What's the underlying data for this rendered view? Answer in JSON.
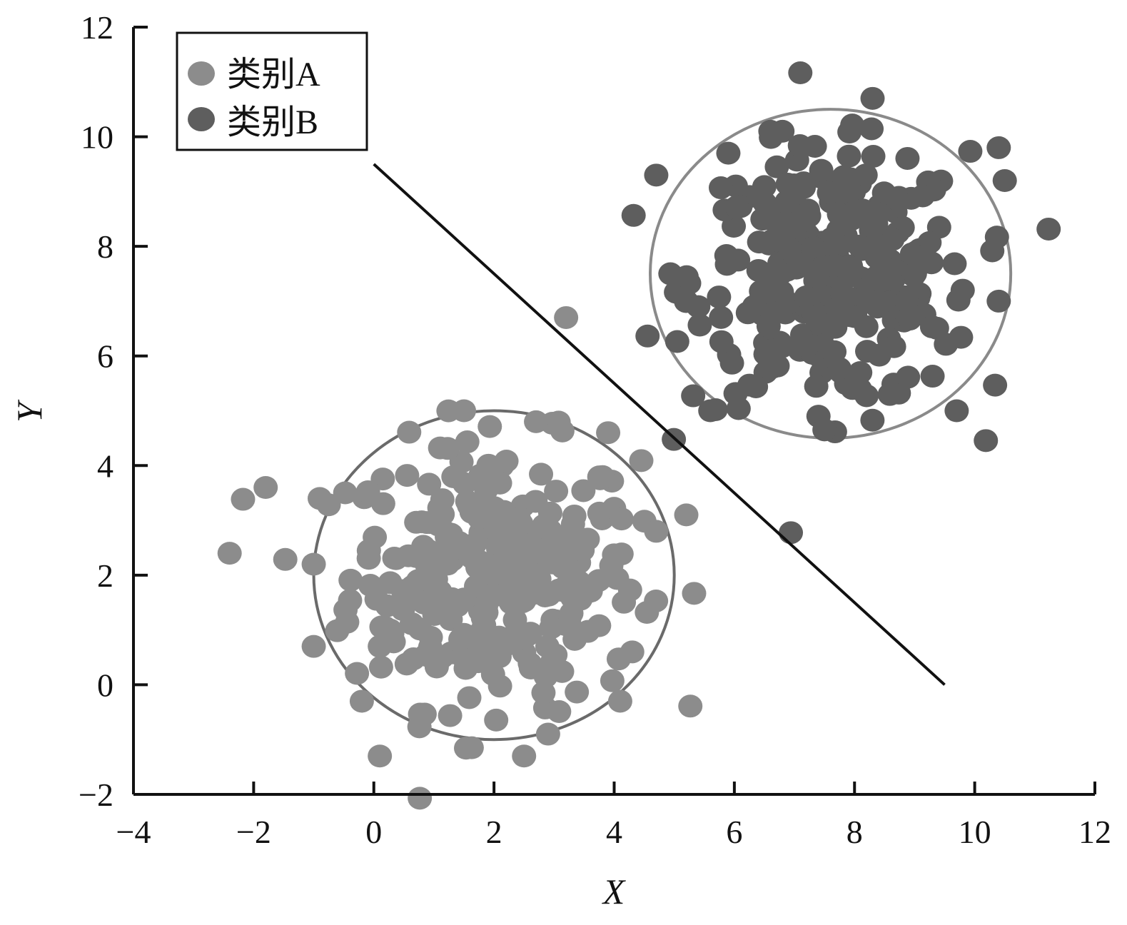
{
  "chart_data": {
    "type": "scatter",
    "xlabel": "X",
    "ylabel": "Y",
    "xlim": [
      -4,
      12
    ],
    "ylim": [
      -2,
      12
    ],
    "xticks": [
      -4,
      -2,
      0,
      2,
      4,
      6,
      8,
      10,
      12
    ],
    "yticks": [
      -2,
      0,
      2,
      4,
      6,
      8,
      10,
      12
    ],
    "grid": false,
    "legend_position": "top-left",
    "series": [
      {
        "name": "类别A",
        "color": "#8c8c8c",
        "center": [
          2.0,
          2.0
        ],
        "spread": 1.2,
        "count": 300,
        "outliers": [
          [
            -2.4,
            2.4
          ],
          [
            -1.8,
            3.6
          ],
          [
            -1.0,
            2.2
          ],
          [
            -0.9,
            3.4
          ],
          [
            -1.0,
            0.7
          ],
          [
            0.1,
            -1.3
          ],
          [
            2.5,
            -1.3
          ],
          [
            5.2,
            3.1
          ],
          [
            4.3,
            0.6
          ],
          [
            4.1,
            -0.3
          ],
          [
            3.9,
            4.6
          ],
          [
            3.2,
            6.7
          ],
          [
            1.5,
            5.0
          ],
          [
            2.7,
            4.8
          ],
          [
            4.7,
            2.8
          ],
          [
            -0.2,
            -0.3
          ],
          [
            0.1,
            0.7
          ],
          [
            2.9,
            -0.9
          ]
        ]
      },
      {
        "name": "类别B",
        "color": "#5e5e5e",
        "center": [
          7.6,
          7.4
        ],
        "spread": 1.15,
        "count": 300,
        "outliers": [
          [
            8.3,
            10.7
          ],
          [
            10.4,
            9.8
          ],
          [
            10.5,
            9.2
          ],
          [
            4.7,
            9.3
          ],
          [
            5.6,
            5.0
          ],
          [
            9.7,
            5.0
          ],
          [
            7.4,
            4.9
          ],
          [
            7.5,
            4.65
          ],
          [
            6.6,
            10.1
          ],
          [
            6.8,
            10.1
          ],
          [
            10.4,
            7.0
          ],
          [
            5.2,
            7.0
          ],
          [
            5.4,
            6.9
          ],
          [
            9.8,
            7.2
          ],
          [
            5.9,
            9.7
          ]
        ]
      }
    ],
    "circles": [
      {
        "series": "类别A",
        "center": [
          2.0,
          2.0
        ],
        "radius": 3.0,
        "color": "#6a6a6a"
      },
      {
        "series": "类别B",
        "center": [
          7.6,
          7.5
        ],
        "radius": 3.0,
        "color": "#8a8a8a"
      }
    ],
    "decision_line": {
      "from": [
        0.0,
        9.5
      ],
      "to": [
        9.5,
        0.0
      ],
      "color": "#111111"
    }
  }
}
